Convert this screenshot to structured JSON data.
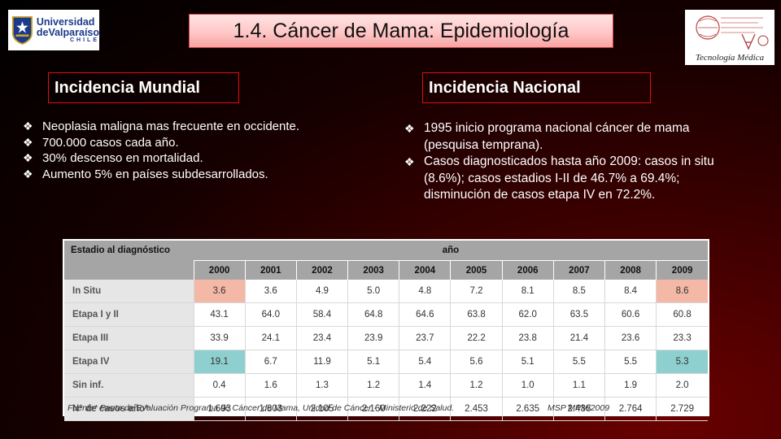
{
  "logos": {
    "left": {
      "line1": "Universidad",
      "line2": "deValparaíso",
      "line3": "CHILE"
    },
    "right": {
      "caption": "Tecnología Médica"
    }
  },
  "slide_title": "1.4. Cáncer de Mama: Epidemiología",
  "left_section": {
    "heading": "Incidencia Mundial",
    "bullets": [
      "Neoplasia maligna mas frecuente en occidente.",
      "700.000 casos cada año.",
      "30% descenso en mortalidad.",
      "Aumento 5% en países subdesarrollados."
    ]
  },
  "right_section": {
    "heading": "Incidencia Nacional",
    "bullets": [
      "1995 inicio programa nacional cáncer de mama (pesquisa temprana).",
      "Casos diagnosticados hasta año 2009: casos in situ (8.6%); casos estadios I-II de 46.7% a 69.4%; disminución de casos etapa IV en 72.2%."
    ]
  },
  "table": {
    "stage_header": "Estadio al diagnóstico",
    "year_group_header": "año",
    "years": [
      "2000",
      "2001",
      "2002",
      "2003",
      "2004",
      "2005",
      "2006",
      "2007",
      "2008",
      "2009"
    ],
    "rows": [
      {
        "label": "In Situ",
        "values": [
          "3.6",
          "3.6",
          "4.9",
          "5.0",
          "4.8",
          "7.2",
          "8.1",
          "8.5",
          "8.4",
          "8.6"
        ]
      },
      {
        "label": "Etapa I y II",
        "values": [
          "43.1",
          "64.0",
          "58.4",
          "64.8",
          "64.6",
          "63.8",
          "62.0",
          "63.5",
          "60.6",
          "60.8"
        ]
      },
      {
        "label": "Etapa III",
        "values": [
          "33.9",
          "24.1",
          "23.4",
          "23.9",
          "23.7",
          "22.2",
          "23.8",
          "21.4",
          "23.6",
          "23.3"
        ]
      },
      {
        "label": "Etapa IV",
        "values": [
          "19.1",
          "6.7",
          "11.9",
          "5.1",
          "5.4",
          "5.6",
          "5.1",
          "5.5",
          "5.5",
          "5.3"
        ]
      },
      {
        "label": "Sin inf.",
        "values": [
          "0.4",
          "1.6",
          "1.3",
          "1.2",
          "1.4",
          "1.2",
          "1.0",
          "1.1",
          "1.9",
          "2.0"
        ]
      },
      {
        "label": "N° de casos año*",
        "values": [
          "1.693",
          "1.803",
          "2.105",
          "2.160",
          "2.222",
          "2.453",
          "2.635",
          "2.436",
          "2.764",
          "2.729"
        ]
      }
    ],
    "source_note": "Fuente* Pauta de Evaluación Programa de Cáncer de Mama, Unidad de Cáncer - Ministerio de Salud.",
    "source_right": "MSP MPM/2009"
  },
  "colors": {
    "highlight_pink": "#f4b8a6",
    "highlight_teal": "#8ecfcf",
    "section_border": "#e01010"
  }
}
